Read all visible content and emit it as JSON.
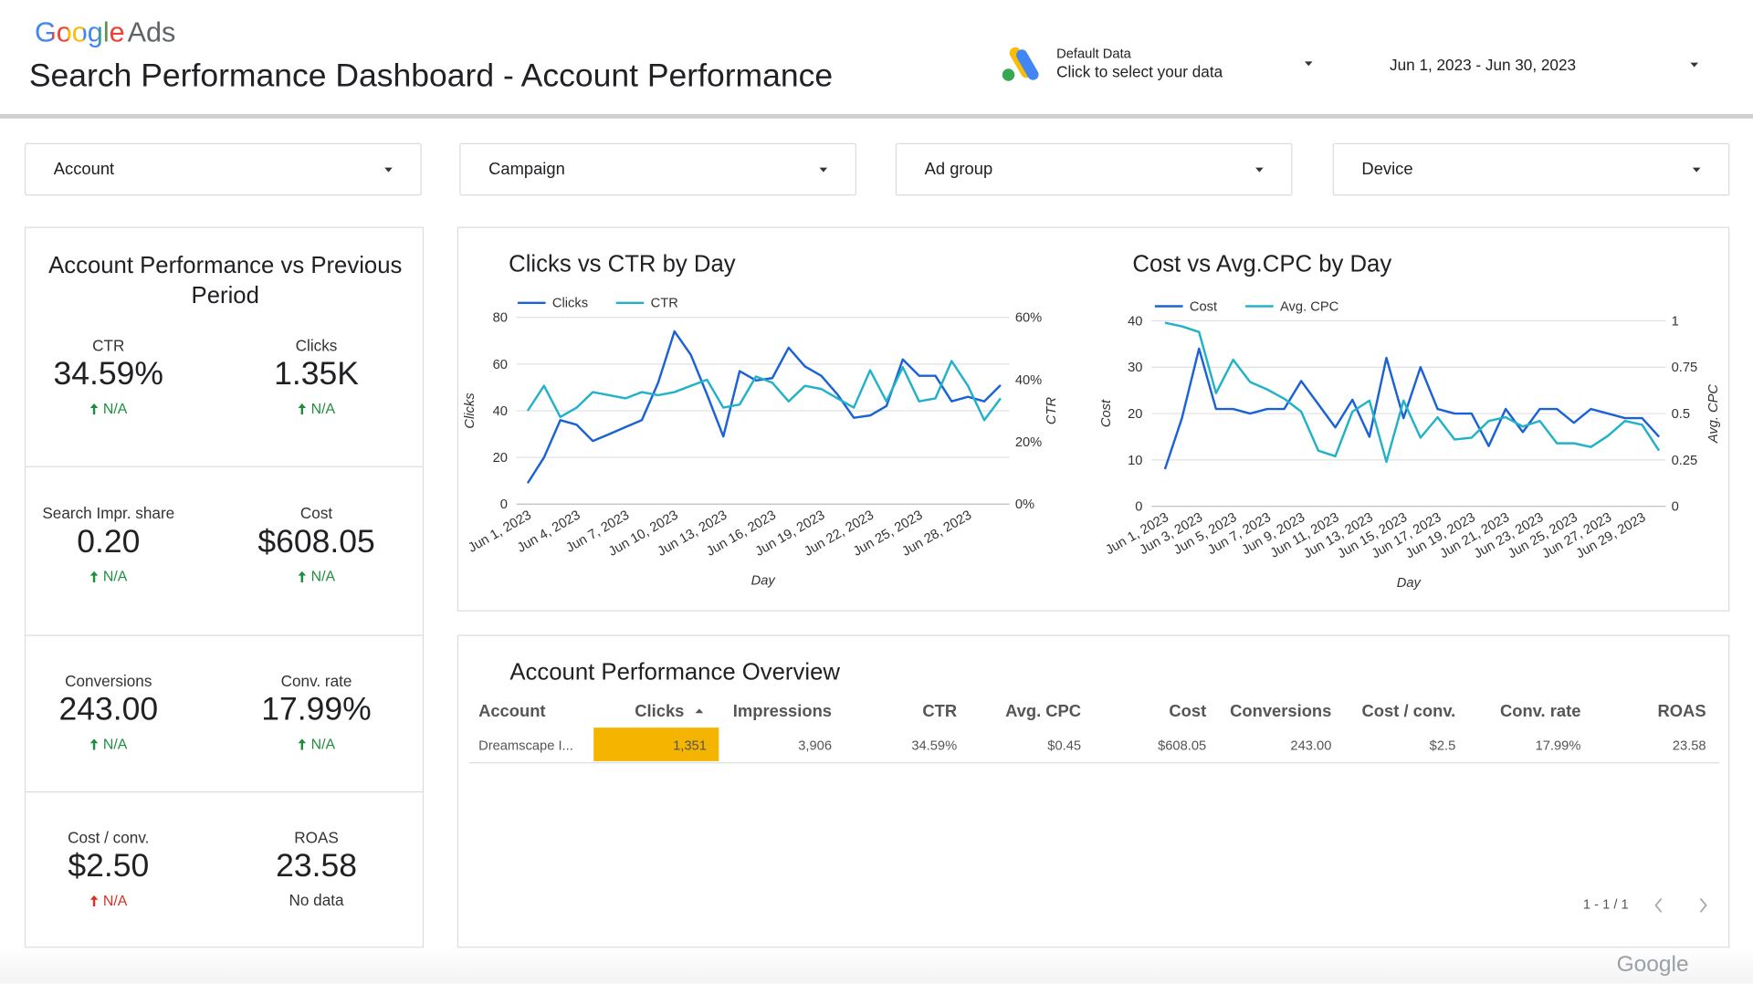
{
  "header": {
    "brand": "Google",
    "product": "Ads",
    "title": "Search Performance Dashboard - Account Performance",
    "data_source": {
      "label": "Default Data",
      "action": "Click to select your data"
    },
    "date_range": "Jun 1, 2023 - Jun 30, 2023"
  },
  "filters": [
    "Account",
    "Campaign",
    "Ad group",
    "Device"
  ],
  "scorecard": {
    "title": "Account Performance vs Previous Period",
    "metrics": [
      {
        "label": "CTR",
        "value": "34.59%",
        "change": "N/A",
        "change_color": "#1e8e3e"
      },
      {
        "label": "Clicks",
        "value": "1.35K",
        "change": "N/A",
        "change_color": "#1e8e3e"
      },
      {
        "label": "Search Impr. share",
        "value": "0.20",
        "change": "N/A",
        "change_color": "#1e8e3e"
      },
      {
        "label": "Cost",
        "value": "$608.05",
        "change": "N/A",
        "change_color": "#1e8e3e"
      },
      {
        "label": "Conversions",
        "value": "243.00",
        "change": "N/A",
        "change_color": "#1e8e3e"
      },
      {
        "label": "Conv. rate",
        "value": "17.99%",
        "change": "N/A",
        "change_color": "#1e8e3e"
      },
      {
        "label": "Cost / conv.",
        "value": "$2.50",
        "change": "N/A",
        "change_color": "#d93025"
      },
      {
        "label": "ROAS",
        "value": "23.58",
        "note": "No data"
      }
    ]
  },
  "chart_data": [
    {
      "type": "line",
      "title": "Clicks vs CTR by Day",
      "x_label": "Day",
      "y_label": "Clicks",
      "y2_label": "CTR",
      "legend": "top-left",
      "grid": true,
      "categories": [
        "Jun 1, 2023",
        null,
        null,
        "Jun 4, 2023",
        null,
        null,
        "Jun 7, 2023",
        null,
        null,
        "Jun 10, 2023",
        null,
        null,
        "Jun 13, 2023",
        null,
        null,
        "Jun 16, 2023",
        null,
        null,
        "Jun 19, 2023",
        null,
        null,
        "Jun 22, 2023",
        null,
        null,
        "Jun 25, 2023",
        null,
        null,
        "Jun 28, 2023",
        null,
        null
      ],
      "series": [
        {
          "name": "Clicks",
          "color": "#1a62d6",
          "values": [
            9,
            20,
            36,
            34,
            27,
            30,
            33,
            36,
            52,
            74,
            64,
            47,
            29,
            57,
            53,
            54,
            67,
            59,
            55,
            47,
            37,
            38,
            42,
            62,
            55,
            55,
            44,
            46,
            44,
            51
          ]
        },
        {
          "name": "CTR",
          "color": "#22b2c8",
          "axis": "y2",
          "values": [
            30,
            38,
            28,
            31,
            36,
            35,
            34,
            36,
            35,
            36,
            38,
            40,
            31,
            32,
            41,
            39,
            33,
            38,
            37,
            34,
            31,
            43,
            33,
            44,
            33,
            34,
            46,
            38,
            27,
            34
          ]
        }
      ],
      "ylim": [
        0,
        80
      ],
      "yticks": [
        0,
        20,
        40,
        60,
        80
      ],
      "y2lim": [
        0,
        60
      ],
      "y2ticks": [
        {
          "value": 0,
          "label": "0%"
        },
        {
          "value": 20,
          "label": "20%"
        },
        {
          "value": 40,
          "label": "40%"
        },
        {
          "value": 60,
          "label": "60%"
        }
      ]
    },
    {
      "type": "line",
      "title": "Cost vs Avg.CPC by Day",
      "x_label": "Day",
      "y_label": "Cost",
      "y2_label": "Avg. CPC",
      "legend": "top-left",
      "grid": true,
      "categories": [
        "Jun 1, 2023",
        null,
        "Jun 3, 2023",
        null,
        "Jun 5, 2023",
        null,
        "Jun 7, 2023",
        null,
        "Jun 9, 2023",
        null,
        "Jun 11, 2023",
        null,
        "Jun 13, 2023",
        null,
        "Jun 15, 2023",
        null,
        "Jun 17, 2023",
        null,
        "Jun 19, 2023",
        null,
        "Jun 21, 2023",
        null,
        "Jun 23, 2023",
        null,
        "Jun 25, 2023",
        null,
        "Jun 27, 2023",
        null,
        "Jun 29, 2023",
        null
      ],
      "series": [
        {
          "name": "Cost",
          "color": "#1a62d6",
          "values": [
            8,
            19,
            34,
            21,
            21,
            20,
            21,
            21,
            27,
            22,
            17,
            23,
            15,
            32,
            19,
            30,
            21,
            20,
            20,
            13,
            21,
            16,
            21,
            21,
            18,
            21,
            20,
            19,
            19,
            15
          ]
        },
        {
          "name": "Avg. CPC",
          "color": "#22b2c8",
          "axis": "y2",
          "values": [
            0.99,
            0.97,
            0.94,
            0.61,
            0.79,
            0.67,
            0.63,
            0.58,
            0.51,
            0.3,
            0.27,
            0.51,
            0.57,
            0.24,
            0.57,
            0.37,
            0.48,
            0.36,
            0.37,
            0.46,
            0.48,
            0.43,
            0.46,
            0.34,
            0.34,
            0.32,
            0.38,
            0.46,
            0.44,
            0.3
          ]
        }
      ],
      "ylim": [
        0,
        40
      ],
      "yticks": [
        0,
        10,
        20,
        30,
        40
      ],
      "y2lim": [
        0,
        1
      ],
      "y2ticks": [
        0,
        0.25,
        0.5,
        0.75,
        1
      ]
    }
  ],
  "table": {
    "title": "Account Performance Overview",
    "columns": [
      "Account",
      "Clicks",
      "Impressions",
      "CTR",
      "Avg. CPC",
      "Cost",
      "Conversions",
      "Cost / conv.",
      "Conv. rate",
      "ROAS"
    ],
    "rows": [
      [
        "Dreamscape I...",
        "1,351",
        "3,906",
        "34.59%",
        "$0.45",
        "$608.05",
        "243.00",
        "$2.5",
        "17.99%",
        "23.58"
      ]
    ],
    "pagination": "1 - 1 / 1"
  },
  "footer": "Google"
}
